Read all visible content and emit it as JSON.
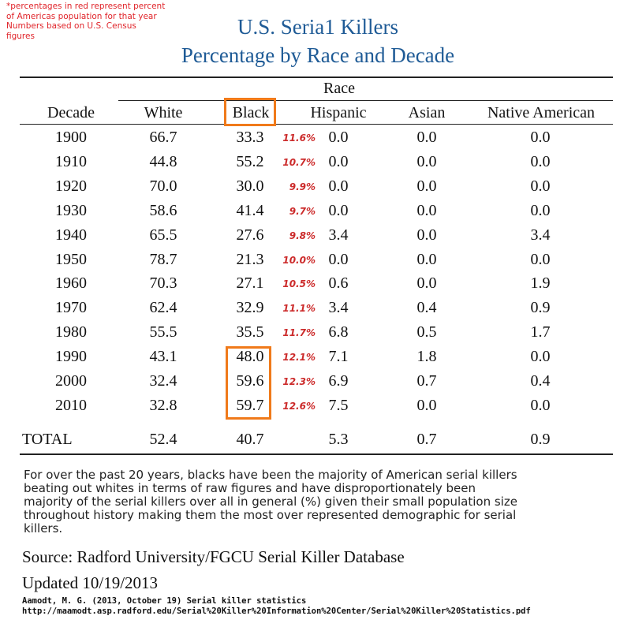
{
  "note": [
    "*percentages in red represent percent",
    "of Americas population for that year",
    "Numbers based on U.S. Census",
    "figures"
  ],
  "title": "U.S. Seria1 Killers",
  "subtitle": "Percentage by Race and Decade",
  "table": {
    "group_header": "Race",
    "columns": [
      "Decade",
      "White",
      "Black",
      "Hispanic",
      "Asian",
      "Native American"
    ],
    "rows": [
      {
        "decade": "1900",
        "white": "66.7",
        "black": "33.3",
        "pct": "11.6%",
        "hispanic": "0.0",
        "asian": "0.0",
        "native": "0.0"
      },
      {
        "decade": "1910",
        "white": "44.8",
        "black": "55.2",
        "pct": "10.7%",
        "hispanic": "0.0",
        "asian": "0.0",
        "native": "0.0"
      },
      {
        "decade": "1920",
        "white": "70.0",
        "black": "30.0",
        "pct": "9.9%",
        "hispanic": "0.0",
        "asian": "0.0",
        "native": "0.0"
      },
      {
        "decade": "1930",
        "white": "58.6",
        "black": "41.4",
        "pct": "9.7%",
        "hispanic": "0.0",
        "asian": "0.0",
        "native": "0.0"
      },
      {
        "decade": "1940",
        "white": "65.5",
        "black": "27.6",
        "pct": "9.8%",
        "hispanic": "3.4",
        "asian": "0.0",
        "native": "3.4"
      },
      {
        "decade": "1950",
        "white": "78.7",
        "black": "21.3",
        "pct": "10.0%",
        "hispanic": "0.0",
        "asian": "0.0",
        "native": "0.0"
      },
      {
        "decade": "1960",
        "white": "70.3",
        "black": "27.1",
        "pct": "10.5%",
        "hispanic": "0.6",
        "asian": "0.0",
        "native": "1.9"
      },
      {
        "decade": "1970",
        "white": "62.4",
        "black": "32.9",
        "pct": "11.1%",
        "hispanic": "3.4",
        "asian": "0.4",
        "native": "0.9"
      },
      {
        "decade": "1980",
        "white": "55.5",
        "black": "35.5",
        "pct": "11.7%",
        "hispanic": "6.8",
        "asian": "0.5",
        "native": "1.7"
      },
      {
        "decade": "1990",
        "white": "43.1",
        "black": "48.0",
        "pct": "12.1%",
        "hispanic": "7.1",
        "asian": "1.8",
        "native": "0.0"
      },
      {
        "decade": "2000",
        "white": "32.4",
        "black": "59.6",
        "pct": "12.3%",
        "hispanic": "6.9",
        "asian": "0.7",
        "native": "0.4"
      },
      {
        "decade": "2010",
        "white": "32.8",
        "black": "59.7",
        "pct": "12.6%",
        "hispanic": "7.5",
        "asian": "0.0",
        "native": "0.0"
      }
    ],
    "total": {
      "label": "TOTAL",
      "white": "52.4",
      "black": "40.7",
      "hispanic": "5.3",
      "asian": "0.7",
      "native": "0.9"
    }
  },
  "paragraph": [
    "For over the past 20 years, blacks have been the majority of American serial killers",
    "beating out whites in terms of raw figures and have disproportionately been",
    "majority of the serial killers over all in general (%) given their small population size",
    "throughout history making them the most over represented demographic for serial",
    "killers."
  ],
  "source": "Source: Radford University/FGCU Serial Killer Database",
  "updated": "Updated 10/19/2013",
  "citation": [
    "Aamodt, M. G. (2013, October 19) Serial killer statistics",
    "http://maamodt.asp.radford.edu/Serial%20Killer%20Information%20Center/Serial%20Killer%20Statistics.pdf"
  ],
  "colors": {
    "title": "#1f5b96",
    "highlight": "#f07a1a",
    "percent": "#cc2b2b",
    "note": "#e0242a"
  }
}
